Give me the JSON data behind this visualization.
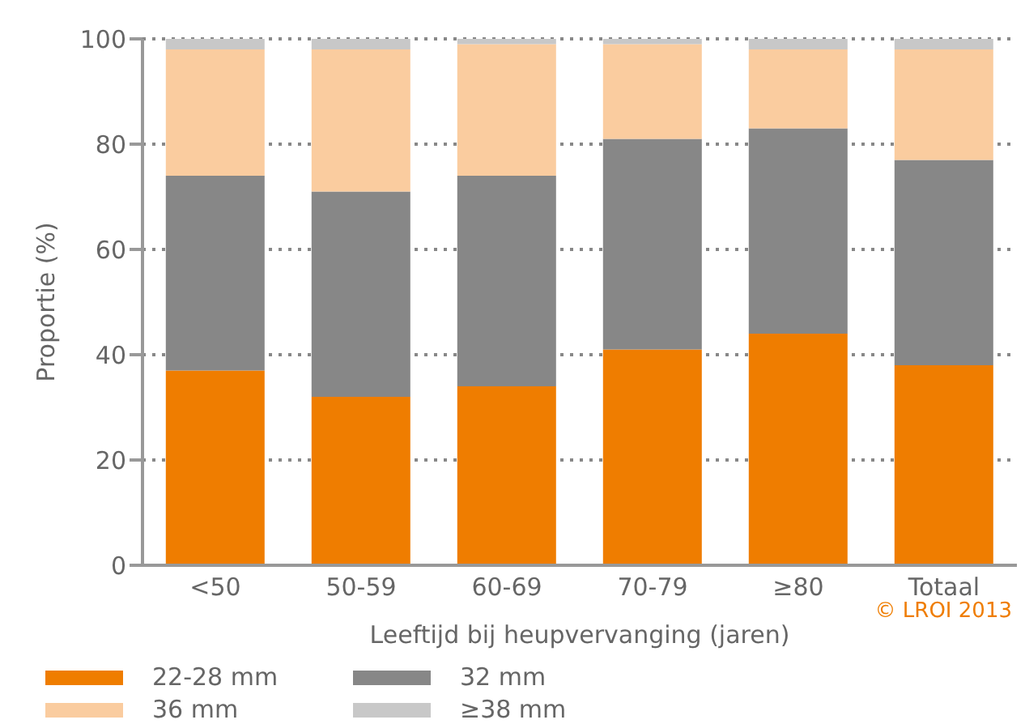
{
  "chart_data": {
    "type": "bar",
    "stacked": true,
    "xlabel": "Leeftijd bij heupvervanging (jaren)",
    "ylabel": "Proportie (%)",
    "categories": [
      "<50",
      "50-59",
      "60-69",
      "70-79",
      "≥80",
      "Totaal"
    ],
    "series": [
      {
        "name": "22-28 mm",
        "color": "#ef7d00",
        "values": [
          37,
          32,
          34,
          41,
          44,
          38
        ]
      },
      {
        "name": "32 mm",
        "color": "#878787",
        "values": [
          37,
          39,
          40,
          40,
          39,
          39
        ]
      },
      {
        "name": "36 mm",
        "color": "#facc9f",
        "values": [
          24,
          27,
          25,
          18,
          15,
          21
        ]
      },
      {
        "name": "≥38 mm",
        "color": "#c8c8c8",
        "values": [
          2,
          2,
          1,
          1,
          2,
          2
        ]
      }
    ],
    "ylim": [
      0,
      100
    ],
    "yticks": [
      0,
      20,
      40,
      60,
      80,
      100
    ],
    "grid": "y",
    "legend": "bottom",
    "annotations": [
      "© LROI 2013"
    ]
  }
}
